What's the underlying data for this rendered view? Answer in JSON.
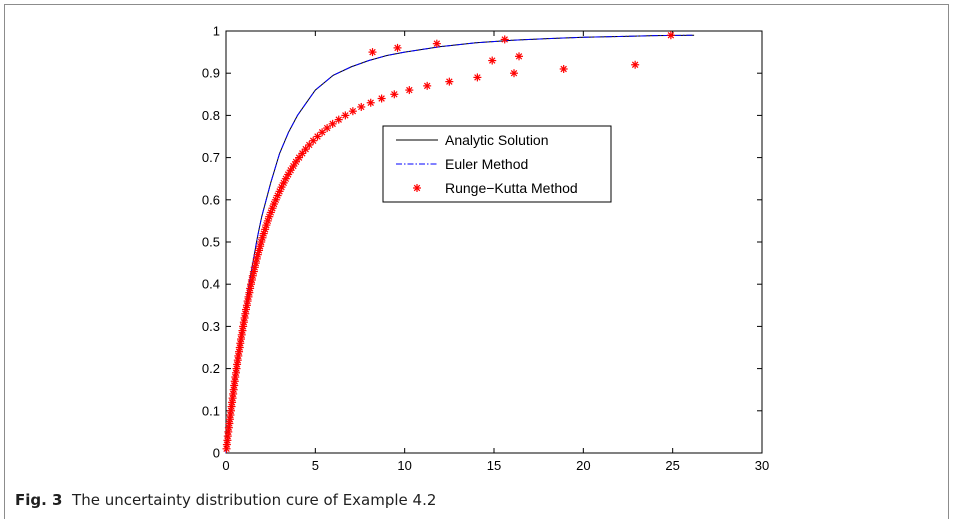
{
  "caption": {
    "label": "Fig. 3",
    "text": "The uncertainty distribution cure of Example 4.2"
  },
  "chart_data": {
    "type": "line",
    "title": "",
    "xlabel": "",
    "ylabel": "",
    "xlim": [
      0,
      30
    ],
    "ylim": [
      0,
      1
    ],
    "xticks": [
      "0",
      "5",
      "10",
      "15",
      "20",
      "25",
      "30"
    ],
    "yticks": [
      "0",
      "0.1",
      "0.2",
      "0.3",
      "0.4",
      "0.5",
      "0.6",
      "0.7",
      "0.8",
      "0.9",
      "1"
    ],
    "grid": false,
    "legend_position": "center",
    "series": [
      {
        "name": "Analytic Solution",
        "style": "solid",
        "color": "#000000",
        "x": [
          0,
          0.1,
          0.2,
          0.35,
          0.5,
          0.75,
          1,
          1.25,
          1.5,
          1.75,
          2,
          2.5,
          3,
          3.5,
          4,
          4.5,
          5,
          6,
          7,
          8,
          9,
          10,
          12,
          14,
          16,
          18,
          20,
          22,
          24,
          26.2
        ],
        "y": [
          0,
          0.04,
          0.08,
          0.13,
          0.18,
          0.25,
          0.32,
          0.39,
          0.45,
          0.51,
          0.56,
          0.64,
          0.71,
          0.76,
          0.8,
          0.83,
          0.86,
          0.895,
          0.915,
          0.93,
          0.942,
          0.95,
          0.963,
          0.972,
          0.978,
          0.982,
          0.985,
          0.987,
          0.989,
          0.99
        ]
      },
      {
        "name": "Euler Method",
        "style": "dashdot",
        "color": "#0000ff",
        "x": [
          0,
          0.1,
          0.2,
          0.35,
          0.5,
          0.75,
          1,
          1.25,
          1.5,
          1.75,
          2,
          2.5,
          3,
          3.5,
          4,
          4.5,
          5,
          6,
          7,
          8,
          9,
          10,
          12,
          14,
          16,
          18,
          20,
          22,
          24,
          26.2
        ],
        "y": [
          0,
          0.04,
          0.08,
          0.13,
          0.18,
          0.25,
          0.32,
          0.39,
          0.45,
          0.51,
          0.56,
          0.64,
          0.71,
          0.76,
          0.8,
          0.83,
          0.86,
          0.895,
          0.915,
          0.93,
          0.942,
          0.95,
          0.963,
          0.972,
          0.978,
          0.982,
          0.985,
          0.987,
          0.989,
          0.99
        ]
      },
      {
        "name": "Runge−Kutta Method",
        "style": "markers",
        "marker": "asterisk",
        "color": "#ff0000",
        "y": [
          0.01,
          0.02,
          0.03,
          0.04,
          0.05,
          0.06,
          0.07,
          0.08,
          0.09,
          0.1,
          0.11,
          0.12,
          0.13,
          0.14,
          0.15,
          0.16,
          0.17,
          0.18,
          0.19,
          0.2,
          0.21,
          0.22,
          0.23,
          0.24,
          0.25,
          0.26,
          0.27,
          0.28,
          0.29,
          0.3,
          0.31,
          0.32,
          0.33,
          0.34,
          0.35,
          0.36,
          0.37,
          0.38,
          0.39,
          0.4,
          0.41,
          0.42,
          0.43,
          0.44,
          0.45,
          0.46,
          0.47,
          0.48,
          0.49,
          0.5,
          0.51,
          0.52,
          0.53,
          0.54,
          0.55,
          0.56,
          0.57,
          0.58,
          0.59,
          0.6,
          0.61,
          0.62,
          0.63,
          0.64,
          0.65,
          0.66,
          0.67,
          0.68,
          0.69,
          0.7,
          0.71,
          0.72,
          0.73,
          0.74,
          0.75,
          0.76,
          0.77,
          0.78,
          0.79,
          0.8,
          0.81,
          0.82,
          0.83,
          0.84,
          0.85,
          0.86,
          0.87,
          0.88,
          0.89,
          0.9,
          0.91,
          0.92,
          0.93,
          0.94,
          0.95,
          0.96,
          0.97,
          0.98,
          0.99
        ],
        "x": [
          0.03,
          0.05,
          0.08,
          0.1,
          0.13,
          0.16,
          0.19,
          0.22,
          0.25,
          0.28,
          0.31,
          0.34,
          0.37,
          0.4,
          0.43,
          0.46,
          0.49,
          0.52,
          0.56,
          0.59,
          0.62,
          0.66,
          0.69,
          0.73,
          0.77,
          0.8,
          0.84,
          0.88,
          0.92,
          0.96,
          1.0,
          1.04,
          1.08,
          1.12,
          1.17,
          1.21,
          1.26,
          1.31,
          1.35,
          1.4,
          1.45,
          1.5,
          1.56,
          1.61,
          1.67,
          1.72,
          1.78,
          1.85,
          1.91,
          1.97,
          2.04,
          2.11,
          2.19,
          2.26,
          2.34,
          2.42,
          2.51,
          2.6,
          2.69,
          2.79,
          2.89,
          3.0,
          3.11,
          3.23,
          3.35,
          3.48,
          3.62,
          3.77,
          3.92,
          4.09,
          4.27,
          4.46,
          4.66,
          4.88,
          5.12,
          5.38,
          5.66,
          5.97,
          6.31,
          6.68,
          7.1,
          7.57,
          8.1,
          8.71,
          9.42,
          10.26,
          11.26,
          12.5,
          14.07,
          16.12,
          18.9,
          22.9,
          14.9,
          16.4,
          8.2,
          9.6,
          11.8,
          15.6,
          24.9
        ]
      }
    ]
  }
}
